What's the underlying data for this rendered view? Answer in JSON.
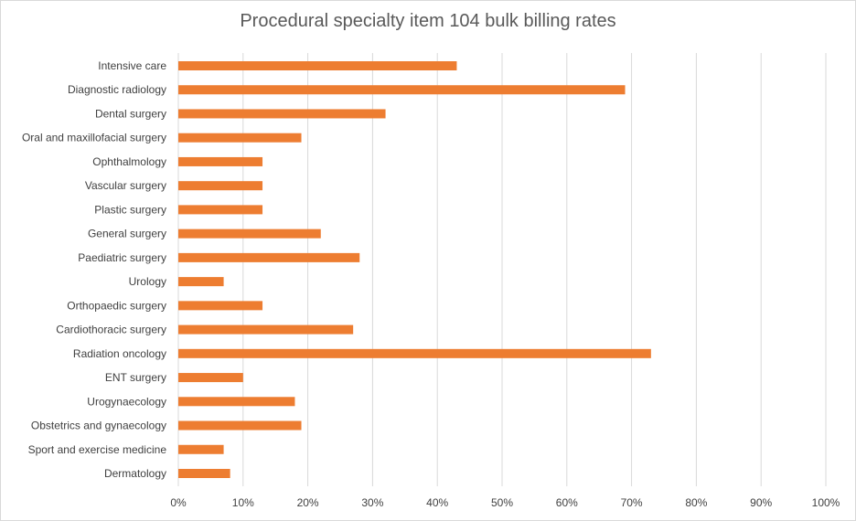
{
  "chart_data": {
    "type": "bar",
    "orientation": "horizontal",
    "title": "Procedural specialty item 104 bulk billing rates",
    "xlabel": "",
    "ylabel": "",
    "xlim": [
      0,
      100
    ],
    "x_unit": "%",
    "ticks": [
      "0%",
      "10%",
      "20%",
      "30%",
      "40%",
      "50%",
      "60%",
      "70%",
      "80%",
      "90%",
      "100%"
    ],
    "grid": true,
    "legend": "none",
    "bar_color": "#ed7d31",
    "grid_color": "#d9d9d9",
    "categories": [
      "Intensive care",
      "Diagnostic radiology",
      "Dental surgery",
      "Oral and maxillofacial surgery",
      "Ophthalmology",
      "Vascular surgery",
      "Plastic surgery",
      "General surgery",
      "Paediatric surgery",
      "Urology",
      "Orthopaedic surgery",
      "Cardiothoracic surgery",
      "Radiation oncology",
      "ENT surgery",
      "Urogynaecology",
      "Obstetrics and gynaecology",
      "Sport and exercise medicine",
      "Dermatology"
    ],
    "values": [
      43,
      69,
      32,
      19,
      13,
      13,
      13,
      22,
      28,
      7,
      13,
      27,
      73,
      10,
      18,
      19,
      7,
      8
    ]
  }
}
